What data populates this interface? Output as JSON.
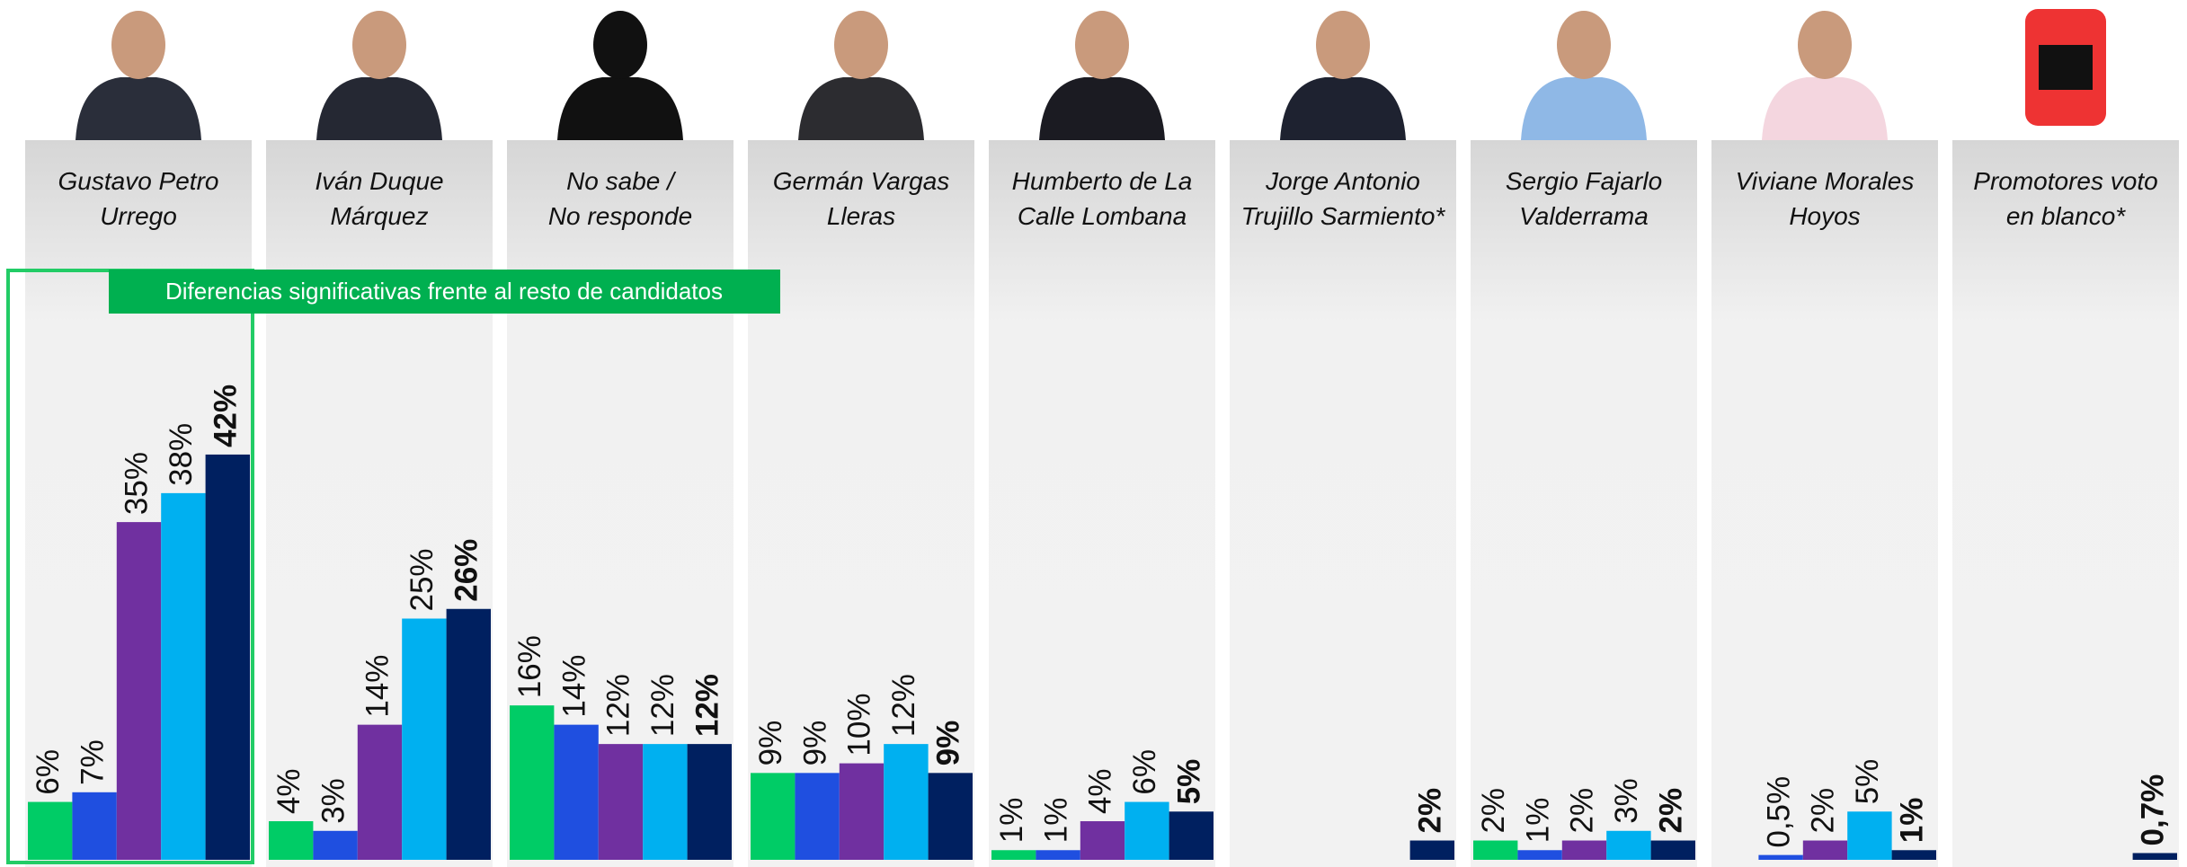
{
  "chart_data": {
    "type": "bar",
    "annotation": "Diferencias significativas frente al resto de candidatos",
    "categories": [
      "Gustavo Petro\nUrrego",
      "Iván Duque\nMárquez",
      "No sabe /\nNo responde",
      "Germán Vargas\nLleras",
      "Humberto de La\nCalle Lombana",
      "Jorge Antonio\nTrujillo Sarmiento*",
      "Sergio Fajarlo\nValderrama",
      "Viviane Morales\nHoyos",
      "Promotores voto\nen blanco*"
    ],
    "series": [
      {
        "color": "#00cc66",
        "values": [
          6,
          4,
          16,
          9,
          1,
          null,
          2,
          null,
          null
        ],
        "value_labels": [
          "6%",
          "4%",
          "16%",
          "9%",
          "1%",
          null,
          "2%",
          null,
          null
        ]
      },
      {
        "color": "#1f4fe0",
        "values": [
          7,
          3,
          14,
          9,
          1,
          null,
          1,
          0.5,
          null
        ],
        "value_labels": [
          "7%",
          "3%",
          "14%",
          "9%",
          "1%",
          null,
          "1%",
          "0,5%",
          null
        ]
      },
      {
        "color": "#7030a0",
        "values": [
          35,
          14,
          12,
          10,
          4,
          null,
          2,
          2,
          null
        ],
        "value_labels": [
          "35%",
          "14%",
          "12%",
          "10%",
          "4%",
          null,
          "2%",
          "2%",
          null
        ]
      },
      {
        "color": "#00b0f0",
        "values": [
          38,
          25,
          12,
          12,
          6,
          null,
          3,
          5,
          null
        ],
        "value_labels": [
          "38%",
          "25%",
          "12%",
          "12%",
          "6%",
          null,
          "3%",
          "5%",
          null
        ]
      },
      {
        "color": "#002060",
        "values": [
          42,
          26,
          12,
          9,
          5,
          2,
          2,
          1,
          0.7
        ],
        "value_labels": [
          "42%",
          "26%",
          "12%",
          "9%",
          "5%",
          "2%",
          "2%",
          "1%",
          "0,7%"
        ]
      }
    ]
  }
}
